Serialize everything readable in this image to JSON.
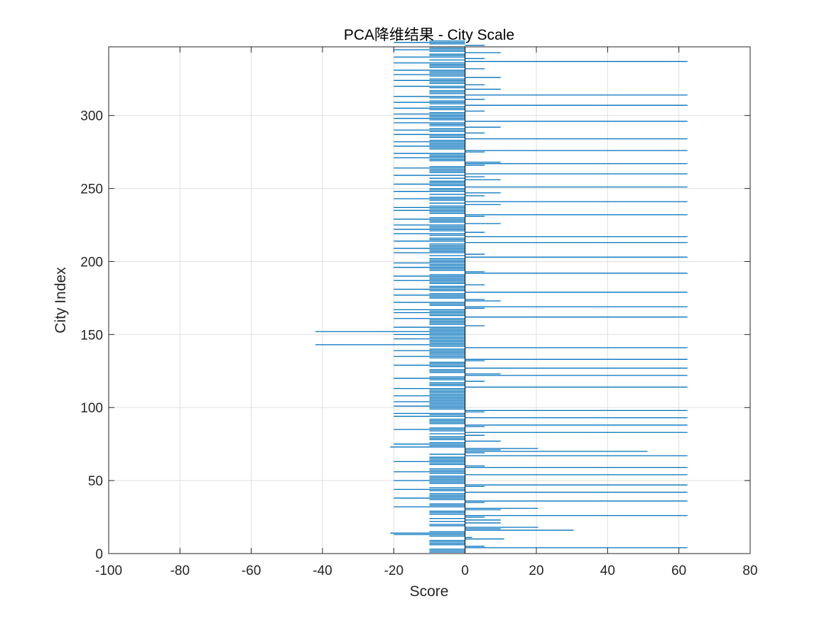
{
  "chart_data": {
    "type": "bar",
    "orientation": "horizontal",
    "title": "PCA降维结果 - City Scale",
    "xlabel": "Score",
    "ylabel": "City Index",
    "xlim": [
      -100,
      80
    ],
    "ylim": [
      0,
      347
    ],
    "xticks": [
      -100,
      -80,
      -60,
      -40,
      -20,
      0,
      20,
      40,
      60,
      80
    ],
    "yticks": [
      0,
      50,
      100,
      150,
      200,
      250,
      300
    ],
    "grid": true,
    "bar_color": "#0072BD",
    "series": [
      {
        "values": [
          -10,
          -10,
          -10,
          62.4,
          5.5,
          -10,
          -10,
          -10,
          -10,
          11,
          2,
          -10,
          -20,
          -21,
          -10,
          30.5,
          10,
          20.5,
          -10,
          -10,
          10,
          -10,
          10,
          -10,
          5.5,
          62.4,
          -10,
          -10,
          -10,
          10,
          20.5,
          -20,
          -10,
          -10,
          5.5,
          62.4,
          -10,
          -20,
          -10,
          -10,
          -10,
          62.4,
          -10,
          -20,
          -10,
          5.5,
          62.4,
          -10,
          -10,
          -20,
          -10,
          -10,
          -10,
          62.4,
          -10,
          -20,
          -10,
          -10,
          62.4,
          5.5,
          -10,
          -10,
          -20,
          -10,
          -10,
          -10,
          62.4,
          -10,
          5.5,
          51.2,
          10,
          20.5,
          -21,
          -10,
          -20,
          -10,
          10,
          -10,
          -10,
          -10,
          5.5,
          -10,
          62.4,
          -10,
          -20,
          -10,
          5.5,
          62.4,
          -10,
          -10,
          -10,
          -10,
          62.4,
          -20,
          -10,
          -20,
          5.5,
          62.4,
          -10,
          -10,
          -20,
          -10,
          -10,
          -20,
          -10,
          -10,
          -10,
          -20,
          -10,
          -10,
          -10,
          -10,
          -20,
          62.4,
          -10,
          -10,
          -10,
          5.5,
          -10,
          -20,
          -10,
          62.4,
          10,
          -10,
          -10,
          -10,
          62.4,
          -10,
          -20,
          -10,
          -10,
          5.5,
          62.4,
          -10,
          -20,
          -10,
          -10,
          -10,
          -20,
          -10,
          62.4,
          -10,
          -42,
          -10,
          -10,
          -10,
          -20,
          -10,
          -10,
          -20,
          -10,
          -42,
          -10,
          -10,
          -20,
          5.5,
          -10,
          -10,
          -10,
          -10,
          -20,
          62.4,
          -10,
          -10,
          -20,
          -10,
          -20,
          5.5,
          62.4,
          -10,
          -10,
          -20,
          10,
          5.5,
          -10,
          -10,
          -20,
          -10,
          62.4,
          -10,
          -20,
          -10,
          -10,
          5.5,
          -10,
          -10,
          -20,
          -10,
          -10,
          -20,
          -10,
          62.4,
          5.5,
          -10,
          -10,
          -20,
          -10,
          -10,
          -20,
          -10,
          -10,
          -10,
          62.4,
          -10,
          5.5,
          -20,
          -10,
          -10,
          -20,
          -10,
          -10,
          -10,
          62.4,
          -20,
          -10,
          -10,
          62.4,
          -10,
          -20,
          5.5,
          -10,
          -20,
          -10,
          -10,
          -20,
          10,
          -10,
          -10,
          -20,
          -10,
          5.5,
          62.4,
          -10,
          -10,
          -20,
          -10,
          -20,
          -10,
          10,
          -10,
          62.4,
          -10,
          -20,
          -10,
          5.5,
          -10,
          10,
          -20,
          -10,
          -10,
          62.4,
          -10,
          -20,
          -10,
          -10,
          10,
          -10,
          5.5,
          -20,
          62.4,
          -10,
          -10,
          -10,
          -20,
          -10,
          5.5,
          62.4,
          10,
          -10,
          -10,
          -20,
          -10,
          -10,
          -20,
          5.5,
          62.4,
          -10,
          -10,
          -20,
          -10,
          -10,
          -20,
          -10,
          62.4,
          -10,
          -10,
          -20,
          5.5,
          -10,
          -20,
          -10,
          10,
          -10,
          -10,
          -20,
          62.4,
          -10,
          -20,
          -10,
          -10,
          -20,
          -10,
          5.5,
          -10,
          -20,
          -10,
          62.4,
          -10,
          -20,
          -10,
          5.5,
          -10,
          -20,
          62.4,
          -10,
          -10,
          -10,
          10,
          -10,
          -20,
          5.5,
          -10,
          -10,
          -20,
          -10,
          10,
          -10,
          -20,
          -10,
          -10,
          -20,
          5.5,
          -10,
          -10,
          -10,
          -20,
          62.4,
          -10,
          5.5,
          -20,
          -10,
          -10,
          10,
          -10,
          -20,
          -10,
          -10,
          5.5,
          -10,
          -20,
          -10
        ]
      }
    ]
  }
}
